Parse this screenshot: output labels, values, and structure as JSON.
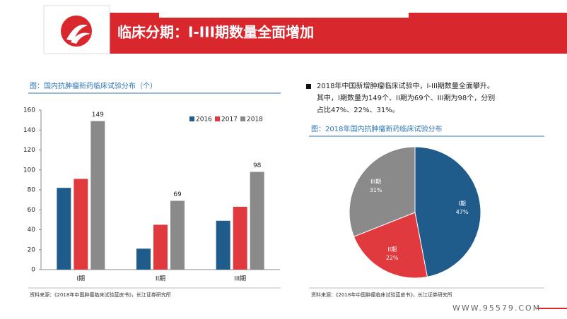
{
  "header": {
    "title": "临床分期：I-III期数量全面增加"
  },
  "bullet": "2018年中国新增肿瘤临床试验中，I-III期数量全面攀升。其中，I期数量为149个、II期为69个、III期为98个，分别占比47%、22%、31%。",
  "footer": "WWW.95579.COM",
  "chart_data": [
    {
      "type": "bar",
      "title": "图：国内抗肿瘤新药临床试验分布（个）",
      "categories": [
        "I期",
        "II期",
        "III期"
      ],
      "series": [
        {
          "name": "2016",
          "color": "#1f5c8b",
          "values": [
            82,
            21,
            49
          ],
          "show_labels": false
        },
        {
          "name": "2017",
          "color": "#e0393e",
          "values": [
            91,
            45,
            63
          ],
          "show_labels": false
        },
        {
          "name": "2018",
          "color": "#8a8a8a",
          "values": [
            149,
            69,
            98
          ],
          "show_labels": true
        }
      ],
      "ylim": [
        0,
        160
      ],
      "yticks": [
        0,
        20,
        40,
        60,
        80,
        100,
        120,
        140,
        160
      ],
      "legend": "top-right",
      "source": "资料来源：《2018年中国肿瘤临床试验蓝皮书》，长江证券研究所"
    },
    {
      "type": "pie",
      "title": "图：2018年国内抗肿瘤新药临床试验分布",
      "categories": [
        "I期",
        "II期",
        "III期"
      ],
      "values": [
        47,
        22,
        31
      ],
      "value_labels": [
        "47%",
        "22%",
        "31%"
      ],
      "colors": [
        "#1f5c8b",
        "#e0393e",
        "#8a8a8a"
      ],
      "source": "资料来源：《2018年中国肿瘤临床试验蓝皮书》，长江证券研究所"
    }
  ]
}
